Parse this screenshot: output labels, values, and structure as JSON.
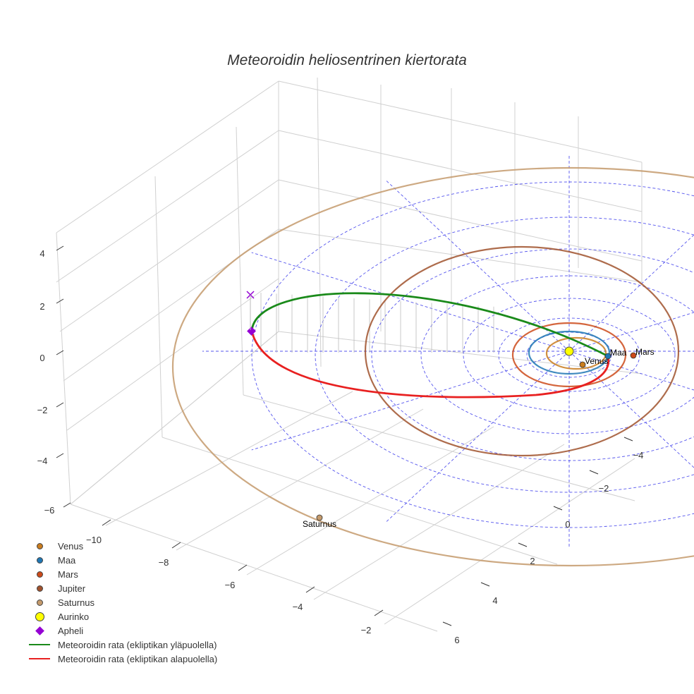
{
  "chart_data": {
    "type": "scatter3d",
    "title": "Meteoroidin heliosentrinen kiertorata",
    "axes": {
      "x": {
        "ticks": [
          "−10",
          "−8",
          "−6",
          "−4",
          "−2"
        ]
      },
      "y": {
        "ticks": [
          "6",
          "4",
          "2",
          "0",
          "−2",
          "−4"
        ]
      },
      "z": {
        "ticks": [
          "4",
          "2",
          "0",
          "−2",
          "−4",
          "−6"
        ]
      }
    },
    "planets": [
      {
        "name": "Venus",
        "orbit_au": 0.72,
        "color": "#c97c1e"
      },
      {
        "name": "Maa",
        "orbit_au": 1.0,
        "color": "#1f77b4"
      },
      {
        "name": "Mars",
        "orbit_au": 1.52,
        "color": "#cc4a1a"
      },
      {
        "name": "Jupiter",
        "orbit_au": 5.2,
        "color": "#a0522d"
      },
      {
        "name": "Saturnus",
        "orbit_au": 9.54,
        "color": "#c49a6c"
      }
    ],
    "sun": {
      "name": "Aurinko",
      "color": "#ffff00"
    },
    "aphelion": {
      "name": "Apheli",
      "color": "#9400d3"
    },
    "series": [
      {
        "name": "Meteoroidin rata (ekliptikan yläpuolella)",
        "color": "#1a8a1a"
      },
      {
        "name": "Meteoroidin rata (ekliptikan alapuolella)",
        "color": "#e82020"
      }
    ],
    "legend_position": "bottom-left"
  }
}
